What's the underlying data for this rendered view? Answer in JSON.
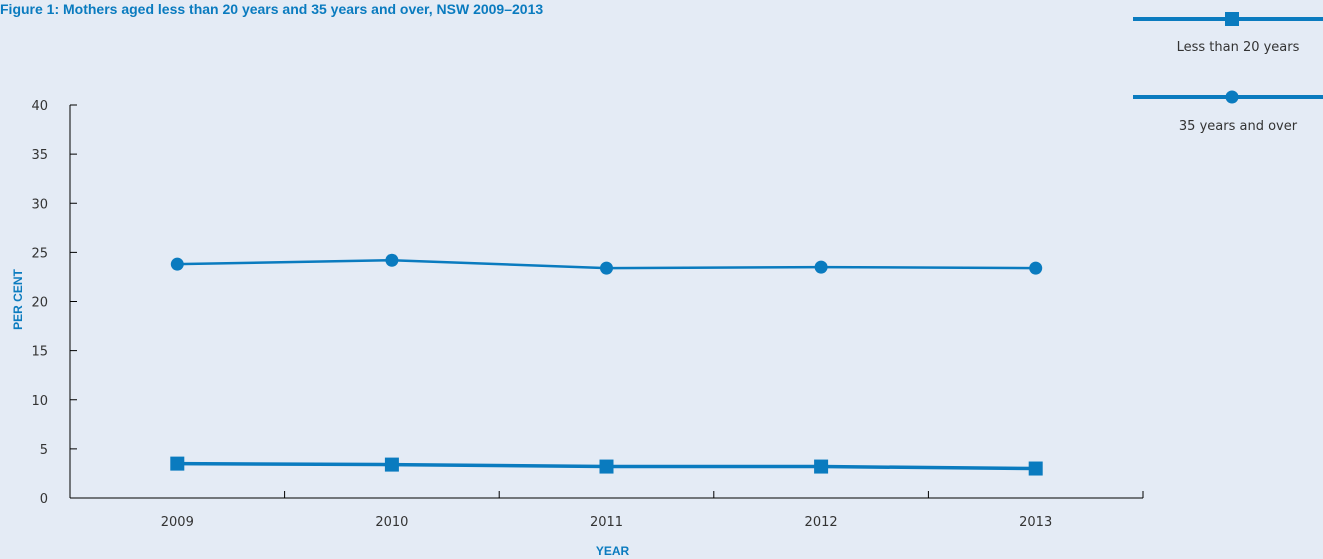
{
  "colors": {
    "background": "#e4ebf5",
    "accent": "#0a7bbf",
    "axis": "#000000",
    "text": "#333333"
  },
  "chart_data": {
    "type": "line",
    "title": "Figure 1: Mothers aged less than 20 years and 35 years and over, NSW 2009–2013",
    "xlabel": "YEAR",
    "ylabel": "PER CENT",
    "categories": [
      "2009",
      "2010",
      "2011",
      "2012",
      "2013"
    ],
    "ylim": [
      0,
      40
    ],
    "yticks": [
      0,
      5,
      10,
      15,
      20,
      25,
      30,
      35,
      40
    ],
    "grid": false,
    "legend_position": "top-right",
    "series": [
      {
        "name": "Less than 20 years",
        "marker": "square",
        "values": [
          3.5,
          3.4,
          3.2,
          3.2,
          3.0
        ]
      },
      {
        "name": "35 years and over",
        "marker": "circle",
        "values": [
          23.8,
          24.2,
          23.4,
          23.5,
          23.4
        ]
      }
    ]
  }
}
